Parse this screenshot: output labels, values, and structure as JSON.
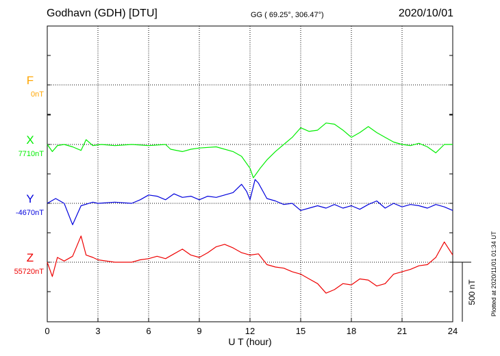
{
  "header": {
    "station": "Godhavn (GDH)  [DTU]",
    "coords": "GG ( 69.25°, 306.47°)",
    "date": "2020/10/01"
  },
  "plotted_note": "Plotted at 2020/11/01 01:34 UT",
  "scale_label": "500 nT",
  "chart_data": {
    "type": "line",
    "xlabel": "U T (hour)",
    "xlim": [
      0,
      24
    ],
    "xticks": [
      "0",
      "3",
      "6",
      "9",
      "12",
      "15",
      "18",
      "21",
      "24"
    ],
    "scale_bar_nT": 500,
    "grid": true,
    "series": [
      {
        "name": "F",
        "baseline": "0nT",
        "color": "#ffa500",
        "values": []
      },
      {
        "name": "X",
        "baseline": "7710nT",
        "color": "#00ee00",
        "values": [
          [
            0,
            0
          ],
          [
            0.3,
            -60
          ],
          [
            0.6,
            -10
          ],
          [
            1,
            0
          ],
          [
            1.5,
            -20
          ],
          [
            2,
            -50
          ],
          [
            2.3,
            40
          ],
          [
            2.7,
            -10
          ],
          [
            3.2,
            0
          ],
          [
            4,
            -10
          ],
          [
            5,
            0
          ],
          [
            6,
            -10
          ],
          [
            7,
            0
          ],
          [
            7.3,
            -40
          ],
          [
            8,
            -60
          ],
          [
            8.5,
            -40
          ],
          [
            9,
            -30
          ],
          [
            10,
            -20
          ],
          [
            11,
            -60
          ],
          [
            11.5,
            -100
          ],
          [
            12,
            -200
          ],
          [
            12.2,
            -280
          ],
          [
            12.6,
            -200
          ],
          [
            13,
            -130
          ],
          [
            13.5,
            -60
          ],
          [
            14,
            0
          ],
          [
            14.5,
            60
          ],
          [
            15,
            140
          ],
          [
            15.5,
            110
          ],
          [
            16,
            120
          ],
          [
            16.5,
            180
          ],
          [
            17,
            170
          ],
          [
            17.5,
            120
          ],
          [
            18,
            60
          ],
          [
            18.5,
            100
          ],
          [
            19,
            150
          ],
          [
            19.5,
            100
          ],
          [
            20,
            60
          ],
          [
            20.5,
            20
          ],
          [
            21,
            0
          ],
          [
            21.5,
            -10
          ],
          [
            22,
            10
          ],
          [
            22.5,
            -20
          ],
          [
            23,
            -70
          ],
          [
            23.5,
            0
          ],
          [
            24,
            0
          ]
        ]
      },
      {
        "name": "Y",
        "baseline": "-4670nT",
        "color": "#0000dd",
        "values": [
          [
            0,
            0
          ],
          [
            0.5,
            40
          ],
          [
            1,
            0
          ],
          [
            1.5,
            -180
          ],
          [
            2,
            -20
          ],
          [
            2.7,
            10
          ],
          [
            3,
            0
          ],
          [
            4,
            10
          ],
          [
            5,
            0
          ],
          [
            5.5,
            30
          ],
          [
            6,
            70
          ],
          [
            6.5,
            60
          ],
          [
            7,
            30
          ],
          [
            7.5,
            80
          ],
          [
            8,
            50
          ],
          [
            8.5,
            60
          ],
          [
            9,
            30
          ],
          [
            9.5,
            60
          ],
          [
            10,
            50
          ],
          [
            10.5,
            70
          ],
          [
            11,
            90
          ],
          [
            11.5,
            160
          ],
          [
            11.8,
            100
          ],
          [
            12,
            30
          ],
          [
            12.3,
            200
          ],
          [
            12.5,
            170
          ],
          [
            13,
            40
          ],
          [
            13.5,
            20
          ],
          [
            14,
            -10
          ],
          [
            14.5,
            0
          ],
          [
            15,
            -60
          ],
          [
            15.5,
            -40
          ],
          [
            16,
            -20
          ],
          [
            16.5,
            -40
          ],
          [
            17,
            -10
          ],
          [
            17.5,
            -40
          ],
          [
            18,
            -20
          ],
          [
            18.5,
            -50
          ],
          [
            19,
            -10
          ],
          [
            19.5,
            20
          ],
          [
            20,
            -40
          ],
          [
            20.5,
            0
          ],
          [
            21,
            -30
          ],
          [
            21.5,
            -10
          ],
          [
            22,
            -20
          ],
          [
            22.5,
            -40
          ],
          [
            23,
            -10
          ],
          [
            23.5,
            -30
          ],
          [
            24,
            -60
          ]
        ]
      },
      {
        "name": "Z",
        "baseline": "55720nT",
        "color": "#ee0000",
        "values": [
          [
            0,
            0
          ],
          [
            0.3,
            -120
          ],
          [
            0.6,
            40
          ],
          [
            1,
            10
          ],
          [
            1.5,
            50
          ],
          [
            2,
            220
          ],
          [
            2.3,
            60
          ],
          [
            2.7,
            40
          ],
          [
            3,
            20
          ],
          [
            4,
            0
          ],
          [
            5,
            0
          ],
          [
            5.5,
            20
          ],
          [
            6,
            30
          ],
          [
            6.5,
            50
          ],
          [
            7,
            30
          ],
          [
            7.5,
            70
          ],
          [
            8,
            110
          ],
          [
            8.5,
            60
          ],
          [
            9,
            40
          ],
          [
            9.5,
            80
          ],
          [
            10,
            130
          ],
          [
            10.5,
            150
          ],
          [
            11,
            120
          ],
          [
            11.5,
            80
          ],
          [
            12,
            60
          ],
          [
            12.5,
            70
          ],
          [
            13,
            -20
          ],
          [
            13.5,
            -40
          ],
          [
            14,
            -50
          ],
          [
            14.5,
            -80
          ],
          [
            15,
            -100
          ],
          [
            15.5,
            -140
          ],
          [
            16,
            -180
          ],
          [
            16.5,
            -260
          ],
          [
            17,
            -230
          ],
          [
            17.5,
            -180
          ],
          [
            18,
            -190
          ],
          [
            18.5,
            -140
          ],
          [
            19,
            -150
          ],
          [
            19.5,
            -200
          ],
          [
            20,
            -180
          ],
          [
            20.5,
            -100
          ],
          [
            21,
            -80
          ],
          [
            21.5,
            -60
          ],
          [
            22,
            -30
          ],
          [
            22.5,
            -20
          ],
          [
            23,
            40
          ],
          [
            23.5,
            170
          ],
          [
            24,
            60
          ]
        ]
      }
    ]
  }
}
